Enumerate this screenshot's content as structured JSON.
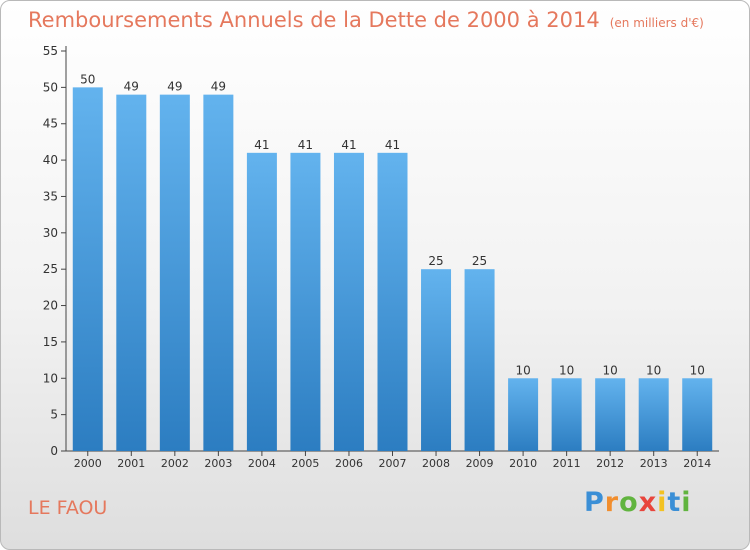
{
  "title": "Remboursements Annuels de la Dette de 2000 à 2014",
  "subtitle": "(en milliers d'€)",
  "commune": "LE FAOU",
  "brand": {
    "letters": [
      "P",
      "r",
      "o",
      "x",
      "i",
      "t",
      "i"
    ],
    "colors": [
      "#3b8fd6",
      "#f18e2e",
      "#61b43f",
      "#e8453c",
      "#f3c221",
      "#3b8fd6",
      "#61b43f"
    ]
  },
  "colors": {
    "bar_light": "#63b3ee",
    "bar_dark": "#2c7dc1",
    "text": "#e5785d",
    "axis": "#444444"
  },
  "chart_data": {
    "type": "bar",
    "categories": [
      "2000",
      "2001",
      "2002",
      "2003",
      "2004",
      "2005",
      "2006",
      "2007",
      "2008",
      "2009",
      "2010",
      "2011",
      "2012",
      "2013",
      "2014"
    ],
    "values": [
      50,
      49,
      49,
      49,
      41,
      41,
      41,
      41,
      25,
      25,
      10,
      10,
      10,
      10,
      10
    ],
    "ylim": [
      0,
      55
    ],
    "yticks": [
      0,
      5,
      10,
      15,
      20,
      25,
      30,
      35,
      40,
      45,
      50,
      55
    ],
    "grid": false,
    "xlabel": "",
    "ylabel": ""
  }
}
